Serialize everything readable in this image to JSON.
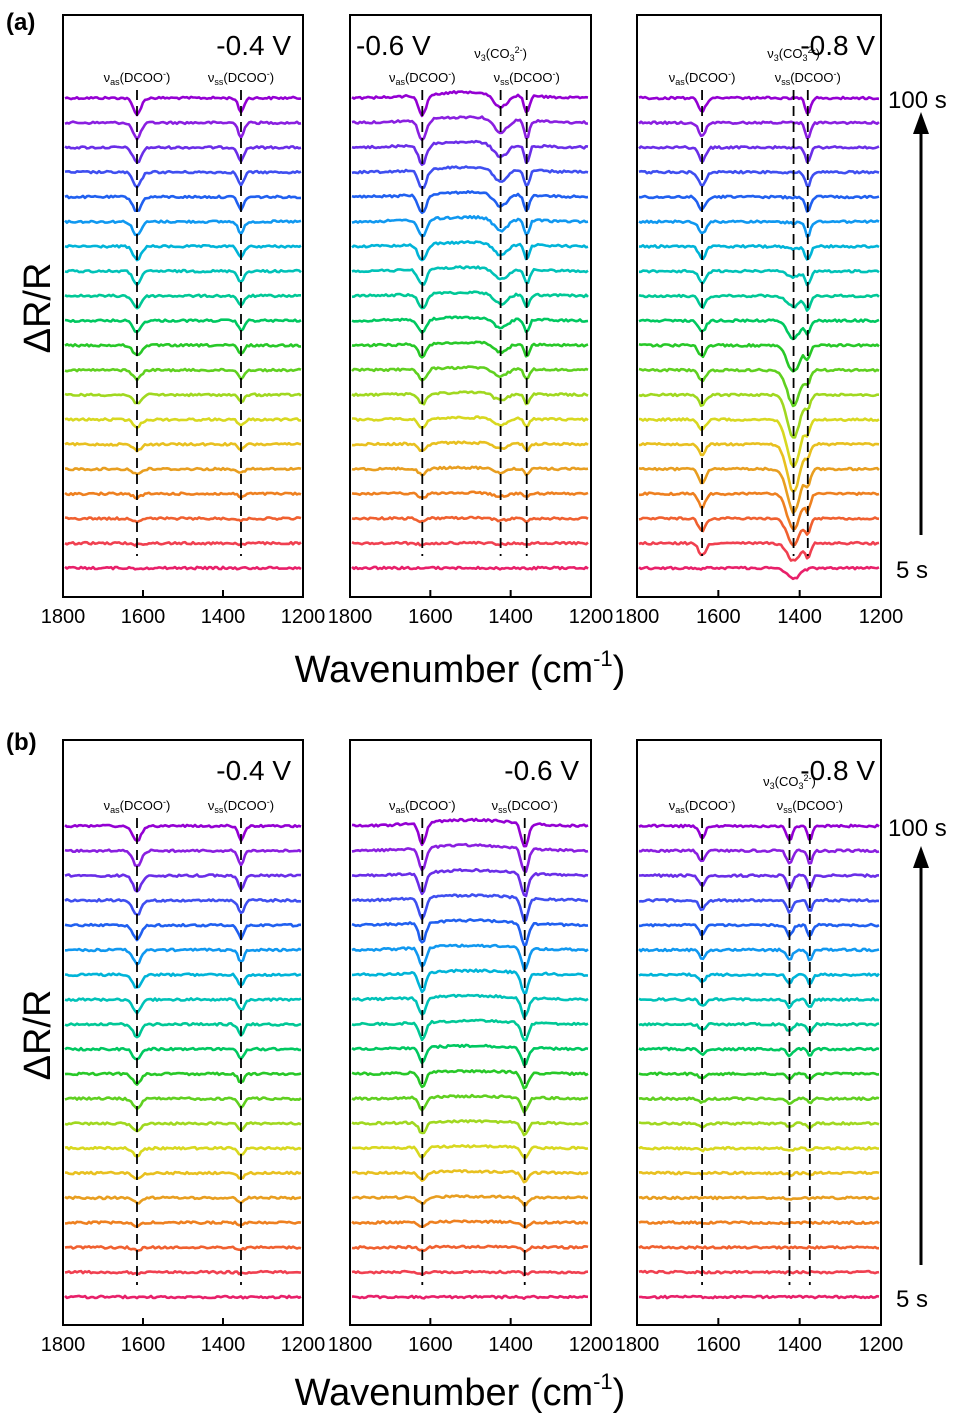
{
  "figure": {
    "x_label": "Wavenumber (cm",
    "x_label_sup": "-1",
    "x_label_close": ")",
    "y_label": "ΔR/R",
    "time_top": "100 s",
    "time_bottom": "5 s"
  },
  "chart_data": [
    {
      "type": "line",
      "panel": "(a)",
      "potential": "-0.4 V",
      "xlim": [
        1800,
        1200
      ],
      "x_ticks": [
        "1800",
        "1600",
        "1400",
        "1200"
      ],
      "n_spectra": 20,
      "time_range_s": [
        5,
        100
      ],
      "bands": [
        {
          "mode": "as",
          "species": "DCOO",
          "charge": "-",
          "position": 1615
        },
        {
          "mode": "ss",
          "species": "DCOO",
          "charge": "-",
          "position": 1355
        }
      ]
    },
    {
      "type": "line",
      "panel": "(a)",
      "potential": "-0.6 V",
      "xlim": [
        1800,
        1200
      ],
      "x_ticks": [
        "1800",
        "1600",
        "1400",
        "1200"
      ],
      "n_spectra": 20,
      "time_range_s": [
        5,
        100
      ],
      "bands": [
        {
          "mode": "as",
          "species": "DCOO",
          "charge": "-",
          "position": 1620
        },
        {
          "mode": "3",
          "species": "CO3",
          "charge": "2-",
          "position": 1425
        },
        {
          "mode": "ss",
          "species": "DCOO",
          "charge": "-",
          "position": 1360
        }
      ]
    },
    {
      "type": "line",
      "panel": "(a)",
      "potential": "-0.8 V",
      "xlim": [
        1800,
        1200
      ],
      "x_ticks": [
        "1800",
        "1600",
        "1400",
        "1200"
      ],
      "n_spectra": 20,
      "time_range_s": [
        5,
        100
      ],
      "bands": [
        {
          "mode": "as",
          "species": "DCOO",
          "charge": "-",
          "position": 1640
        },
        {
          "mode": "3",
          "species": "CO3",
          "charge": "2-",
          "position": 1415
        },
        {
          "mode": "ss",
          "species": "DCOO",
          "charge": "-",
          "position": 1380
        }
      ]
    },
    {
      "type": "line",
      "panel": "(b)",
      "potential": "-0.4 V",
      "xlim": [
        1800,
        1200
      ],
      "x_ticks": [
        "1800",
        "1600",
        "1400",
        "1200"
      ],
      "n_spectra": 20,
      "time_range_s": [
        5,
        100
      ],
      "bands": [
        {
          "mode": "as",
          "species": "DCOO",
          "charge": "-",
          "position": 1615
        },
        {
          "mode": "ss",
          "species": "DCOO",
          "charge": "-",
          "position": 1355
        }
      ]
    },
    {
      "type": "line",
      "panel": "(b)",
      "potential": "-0.6 V",
      "xlim": [
        1800,
        1200
      ],
      "x_ticks": [
        "1800",
        "1600",
        "1400",
        "1200"
      ],
      "n_spectra": 20,
      "time_range_s": [
        5,
        100
      ],
      "bands": [
        {
          "mode": "as",
          "species": "DCOO",
          "charge": "-",
          "position": 1620
        },
        {
          "mode": "ss",
          "species": "DCOO",
          "charge": "-",
          "position": 1365
        }
      ]
    },
    {
      "type": "line",
      "panel": "(b)",
      "potential": "-0.8 V",
      "xlim": [
        1800,
        1200
      ],
      "x_ticks": [
        "1800",
        "1600",
        "1400",
        "1200"
      ],
      "n_spectra": 20,
      "time_range_s": [
        5,
        100
      ],
      "bands": [
        {
          "mode": "as",
          "species": "DCOO",
          "charge": "-",
          "position": 1640
        },
        {
          "mode": "3",
          "species": "CO3",
          "charge": "2-",
          "position": 1425
        },
        {
          "mode": "ss",
          "species": "DCOO",
          "charge": "-",
          "position": 1375
        }
      ]
    }
  ],
  "colors": {
    "spectra_top_to_bottom": [
      "#9400d3",
      "#8a1fe0",
      "#6a2ee8",
      "#3f4ff0",
      "#2060f0",
      "#1098f0",
      "#00b4d8",
      "#00c2b8",
      "#00c896",
      "#00c860",
      "#28c828",
      "#60d020",
      "#a0d820",
      "#d8d820",
      "#e8c020",
      "#e89e20",
      "#ee8020",
      "#f06030",
      "#f04050",
      "#e8206a"
    ],
    "axis": "#000000",
    "dash": "#000000"
  }
}
